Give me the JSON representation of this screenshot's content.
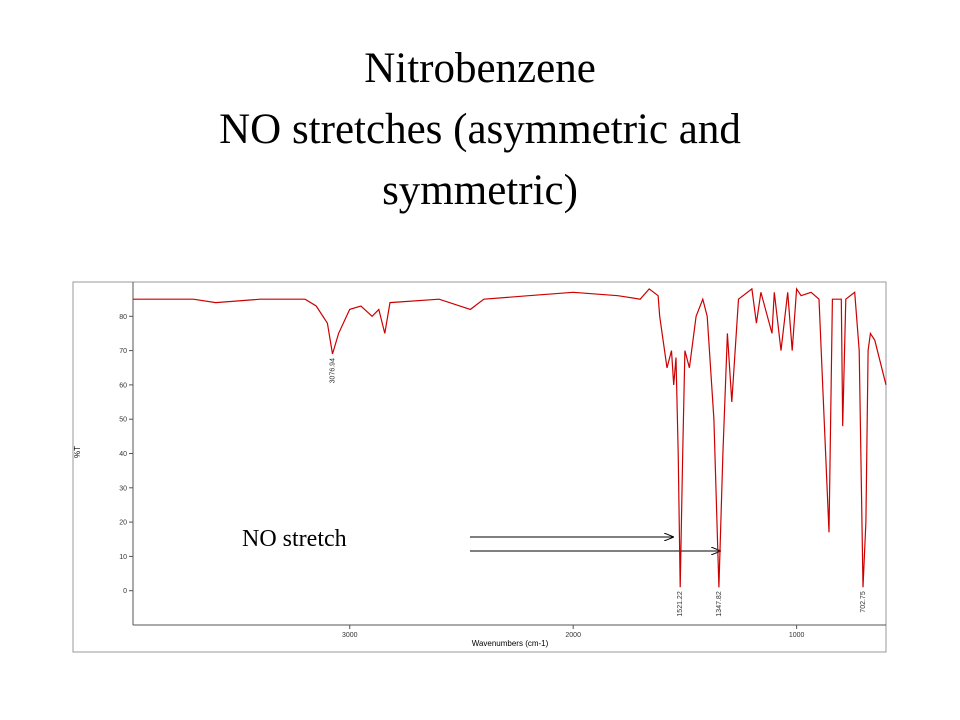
{
  "chart_data": {
    "type": "line",
    "title": "Nitrobenzene",
    "subtitle": "NO stretches (asymmetric and symmetric)",
    "y_label": "%T",
    "x_label": "Wavenumbers (cm-1)",
    "annotation": "NO stretch",
    "color": "#cc0000",
    "x": [
      3970,
      3700,
      3600,
      3400,
      3200,
      3150,
      3100,
      3076.94,
      3050,
      3000,
      2950,
      2900,
      2870,
      2843,
      2820,
      2600,
      2460,
      2400,
      2200,
      2000,
      1800,
      1700,
      1660,
      1620,
      1613,
      1580,
      1560,
      1550,
      1540,
      1530,
      1521.22,
      1510,
      1500,
      1480,
      1450,
      1420,
      1400,
      1370,
      1347.82,
      1330,
      1310,
      1290,
      1260,
      1200,
      1180,
      1160,
      1110,
      1100,
      1070,
      1040,
      1020,
      1000,
      980,
      935,
      900,
      855,
      840,
      800,
      794,
      780,
      740,
      720,
      702.75,
      690,
      680,
      670,
      650,
      600
    ],
    "values": [
      85,
      85,
      84,
      85,
      85,
      83,
      78,
      69,
      75,
      82,
      83,
      80,
      82,
      75,
      84,
      85,
      82,
      85,
      86,
      87,
      86,
      85,
      88,
      86,
      80,
      65,
      70,
      60,
      68,
      40,
      1,
      40,
      70,
      65,
      80,
      85,
      80,
      50,
      1,
      40,
      75,
      55,
      85,
      88,
      78,
      87,
      75,
      87,
      70,
      87,
      70,
      88,
      86,
      87,
      85,
      17,
      85,
      85,
      48,
      85,
      87,
      70,
      1,
      20,
      70,
      75,
      73,
      60
    ],
    "peak_labels": [
      3076.94,
      1521.22,
      1347.82,
      702.75
    ],
    "xlim": [
      3970,
      600
    ],
    "ylim": [
      -10,
      90
    ],
    "xticks": [
      3000,
      2000,
      1000
    ],
    "yticks": [
      0,
      10,
      20,
      30,
      40,
      50,
      60,
      70,
      80
    ]
  }
}
